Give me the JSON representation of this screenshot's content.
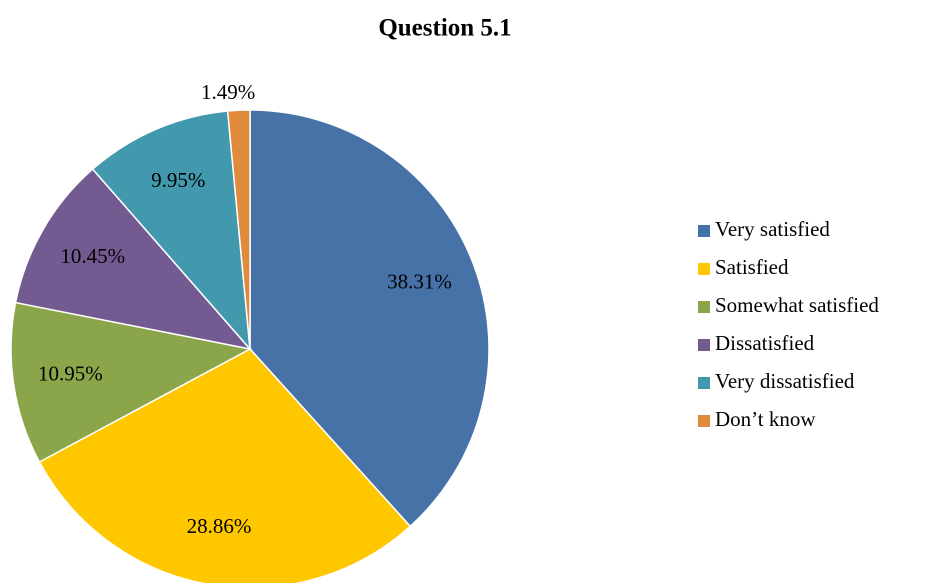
{
  "chart_data": {
    "type": "pie",
    "title": "Question 5.1",
    "categories": [
      "Very satisfied",
      "Satisfied",
      "Somewhat satisfied",
      "Dissatisfied",
      "Very dissatisfied",
      "Don’t know"
    ],
    "values": [
      38.31,
      28.86,
      10.95,
      10.45,
      9.95,
      1.49
    ],
    "value_labels": [
      "38.31%",
      "28.86%",
      "10.95%",
      "10.45%",
      "9.95%",
      "1.49%"
    ],
    "colors": [
      "#4672a8",
      "#ffc700",
      "#8ba54a",
      "#735a91",
      "#4299ad",
      "#e08a3b"
    ],
    "legend": "right"
  }
}
